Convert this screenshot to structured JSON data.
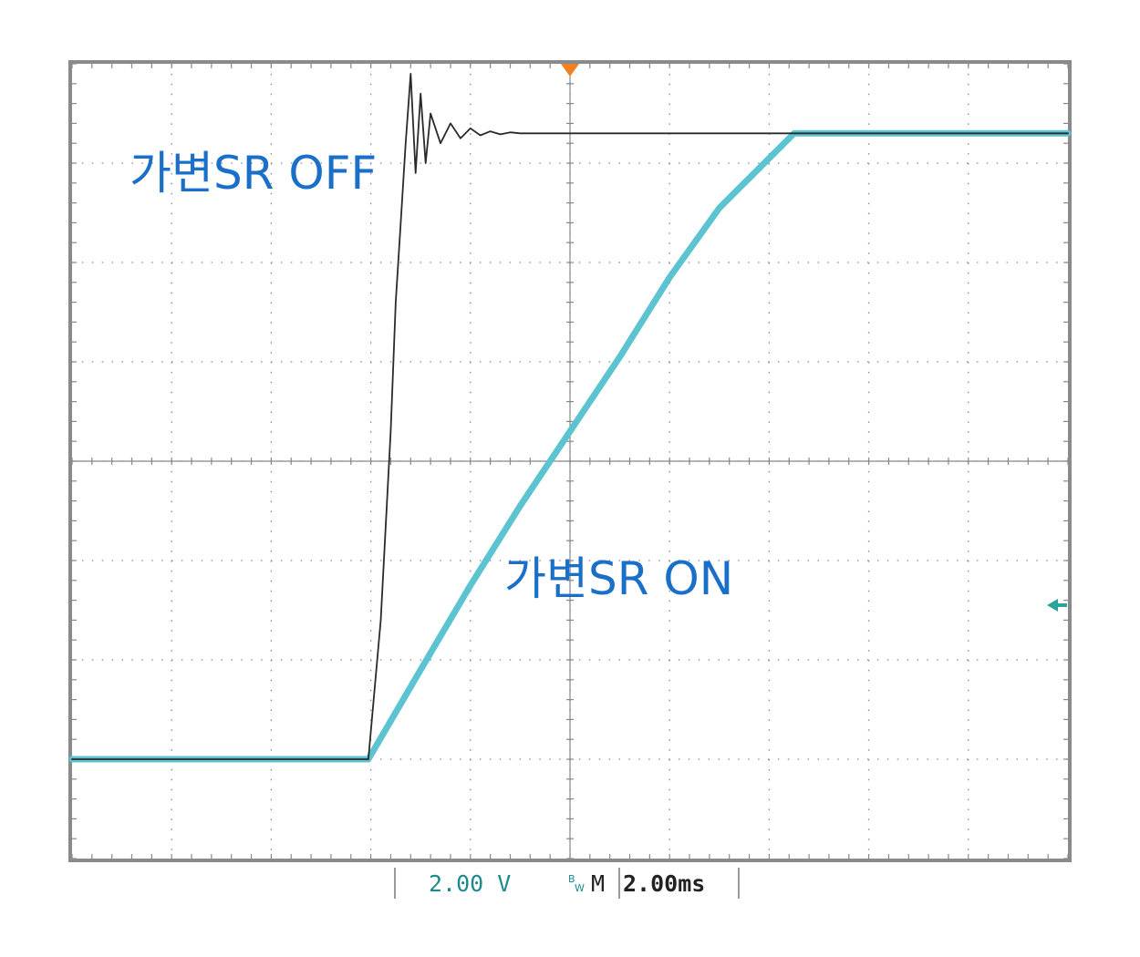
{
  "chart_data": {
    "type": "line",
    "x_range": [
      -10,
      10
    ],
    "y_range": [
      -4,
      4
    ],
    "units": {
      "x": "ms",
      "y": "V"
    },
    "grid": true,
    "series": [
      {
        "color": "#2a2a2a",
        "x": [
          -10,
          -4.05,
          -3.8,
          -3.6,
          -3.5,
          -3.4,
          -3.3,
          -3.2,
          -3.1,
          -3.0,
          -2.9,
          -2.8,
          -2.6,
          -2.4,
          -2.2,
          -2.0,
          -1.8,
          -1.6,
          -1.4,
          -1.2,
          -1.0,
          -0.8,
          -0.6,
          10
        ],
        "y": [
          -3.0,
          -3.0,
          -1.6,
          0.3,
          1.6,
          2.4,
          3.2,
          3.9,
          2.9,
          3.7,
          3.0,
          3.5,
          3.2,
          3.4,
          3.25,
          3.35,
          3.28,
          3.32,
          3.29,
          3.31,
          3.3,
          3.3,
          3.3,
          3.3
        ]
      },
      {
        "color": "#5cc3d0",
        "x": [
          -10,
          -4.05,
          -3.0,
          -2.0,
          -1.0,
          0,
          1.0,
          2.0,
          3.0,
          4.0,
          4.5,
          10
        ],
        "y": [
          -3.0,
          -3.0,
          -2.1,
          -1.25,
          -0.45,
          0.3,
          1.05,
          1.85,
          2.55,
          3.05,
          3.3,
          3.3
        ]
      }
    ],
    "annotations": [
      "가변SR OFF",
      "가변SR ON"
    ]
  },
  "status_bar": {
    "channel_scale": "2.00 V",
    "bw_icon": "bandwidth-limit-icon",
    "timebase_label": "M",
    "timebase": "2.00ms"
  },
  "colors": {
    "annotation": "#1a6fc9",
    "trigger_marker": "#f08020",
    "ground_marker": "#2aa39a",
    "channel_text": "#1c8a8e"
  }
}
